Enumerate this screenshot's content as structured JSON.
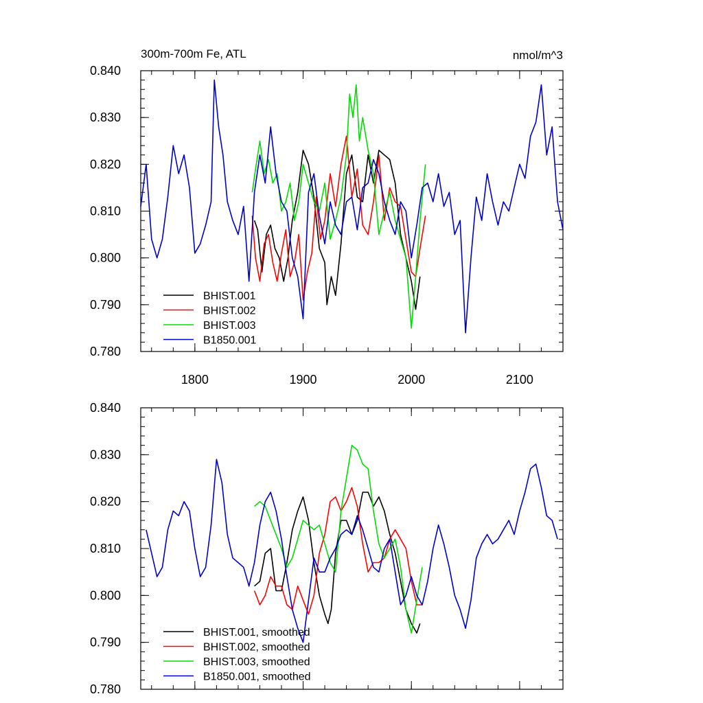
{
  "chart_data": [
    {
      "type": "line",
      "title": "300m-700m Fe, ATL",
      "units": "nmol/m^3",
      "xlabel": "",
      "ylabel": "",
      "xlim": [
        1750,
        2140
      ],
      "ylim": [
        0.78,
        0.84
      ],
      "xticks": [
        1800,
        1900,
        2000,
        2100
      ],
      "xtick_labels": [
        "1800",
        "1900",
        "2000",
        "2100"
      ],
      "yticks": [
        0.78,
        0.79,
        0.8,
        0.81,
        0.82,
        0.83,
        0.84
      ],
      "ytick_labels": [
        "0.780",
        "0.790",
        "0.800",
        "0.810",
        "0.820",
        "0.830",
        "0.840"
      ],
      "legend_position": "bottom-left",
      "series": [
        {
          "name": "BHIST.001",
          "color": "#000000",
          "x": [
            1855,
            1858,
            1862,
            1866,
            1870,
            1874,
            1878,
            1882,
            1886,
            1890,
            1895,
            1900,
            1905,
            1910,
            1915,
            1920,
            1922,
            1926,
            1930,
            1935,
            1940,
            1945,
            1950,
            1955,
            1960,
            1965,
            1970,
            1975,
            1980,
            1985,
            1990,
            1995,
            2000,
            2004,
            2008
          ],
          "y": [
            0.808,
            0.806,
            0.797,
            0.805,
            0.807,
            0.802,
            0.8,
            0.795,
            0.8,
            0.808,
            0.814,
            0.823,
            0.82,
            0.813,
            0.802,
            0.799,
            0.79,
            0.796,
            0.792,
            0.803,
            0.818,
            0.822,
            0.813,
            0.812,
            0.822,
            0.816,
            0.823,
            0.822,
            0.821,
            0.816,
            0.805,
            0.8,
            0.795,
            0.789,
            0.796
          ]
        },
        {
          "name": "BHIST.002",
          "color": "#ff0000",
          "x": [
            1853,
            1856,
            1860,
            1864,
            1868,
            1872,
            1876,
            1880,
            1884,
            1888,
            1892,
            1896,
            1900,
            1904,
            1908,
            1912,
            1916,
            1920,
            1925,
            1930,
            1935,
            1940,
            1945,
            1950,
            1955,
            1960,
            1965,
            1970,
            1975,
            1980,
            1985,
            1990,
            1995,
            2000,
            2004,
            2008,
            2013
          ],
          "y": [
            0.809,
            0.8,
            0.795,
            0.803,
            0.805,
            0.799,
            0.795,
            0.801,
            0.806,
            0.796,
            0.799,
            0.805,
            0.791,
            0.797,
            0.801,
            0.813,
            0.804,
            0.808,
            0.818,
            0.811,
            0.82,
            0.826,
            0.813,
            0.819,
            0.807,
            0.805,
            0.812,
            0.822,
            0.808,
            0.815,
            0.812,
            0.811,
            0.804,
            0.797,
            0.796,
            0.802,
            0.809
          ]
        },
        {
          "name": "BHIST.003",
          "color": "#00dd00",
          "x": [
            1853,
            1856,
            1860,
            1864,
            1868,
            1872,
            1876,
            1880,
            1884,
            1888,
            1892,
            1896,
            1900,
            1905,
            1910,
            1915,
            1920,
            1925,
            1930,
            1935,
            1940,
            1943,
            1946,
            1949,
            1952,
            1955,
            1960,
            1965,
            1970,
            1975,
            1980,
            1985,
            1990,
            1995,
            2000,
            2004,
            2008,
            2013
          ],
          "y": [
            0.814,
            0.819,
            0.825,
            0.818,
            0.821,
            0.816,
            0.818,
            0.81,
            0.812,
            0.816,
            0.808,
            0.812,
            0.82,
            0.816,
            0.812,
            0.81,
            0.816,
            0.804,
            0.808,
            0.813,
            0.822,
            0.835,
            0.83,
            0.837,
            0.825,
            0.83,
            0.823,
            0.818,
            0.805,
            0.81,
            0.814,
            0.808,
            0.804,
            0.8,
            0.785,
            0.796,
            0.808,
            0.82
          ]
        },
        {
          "name": "B1850.001",
          "color": "#0000cc",
          "x": [
            1750,
            1755,
            1760,
            1765,
            1770,
            1775,
            1780,
            1785,
            1790,
            1795,
            1800,
            1805,
            1810,
            1815,
            1818,
            1822,
            1826,
            1830,
            1835,
            1840,
            1845,
            1850,
            1855,
            1860,
            1865,
            1870,
            1875,
            1880,
            1885,
            1890,
            1895,
            1900,
            1905,
            1910,
            1915,
            1920,
            1925,
            1930,
            1935,
            1940,
            1945,
            1950,
            1955,
            1960,
            1965,
            1970,
            1975,
            1980,
            1985,
            1990,
            1995,
            2000,
            2005,
            2010,
            2015,
            2020,
            2025,
            2030,
            2035,
            2040,
            2045,
            2050,
            2055,
            2060,
            2065,
            2070,
            2075,
            2080,
            2085,
            2090,
            2095,
            2100,
            2105,
            2110,
            2115,
            2120,
            2125,
            2130,
            2135,
            2140
          ],
          "y": [
            0.811,
            0.82,
            0.804,
            0.8,
            0.804,
            0.813,
            0.824,
            0.818,
            0.822,
            0.815,
            0.801,
            0.803,
            0.807,
            0.812,
            0.838,
            0.828,
            0.822,
            0.812,
            0.808,
            0.805,
            0.811,
            0.795,
            0.814,
            0.822,
            0.816,
            0.828,
            0.818,
            0.812,
            0.81,
            0.8,
            0.796,
            0.787,
            0.814,
            0.818,
            0.809,
            0.803,
            0.812,
            0.807,
            0.805,
            0.812,
            0.813,
            0.806,
            0.815,
            0.816,
            0.821,
            0.818,
            0.812,
            0.808,
            0.805,
            0.812,
            0.81,
            0.8,
            0.807,
            0.815,
            0.816,
            0.812,
            0.818,
            0.811,
            0.814,
            0.805,
            0.808,
            0.784,
            0.8,
            0.813,
            0.808,
            0.818,
            0.812,
            0.807,
            0.812,
            0.81,
            0.815,
            0.82,
            0.817,
            0.826,
            0.829,
            0.837,
            0.822,
            0.828,
            0.812,
            0.806
          ]
        }
      ]
    },
    {
      "type": "line",
      "title": "",
      "xlabel": "",
      "ylabel": "",
      "xlim": [
        1750,
        2140
      ],
      "ylim": [
        0.78,
        0.84
      ],
      "xticks": [
        1800,
        1900,
        2000,
        2100
      ],
      "xtick_labels": [],
      "yticks": [
        0.78,
        0.79,
        0.8,
        0.81,
        0.82,
        0.83,
        0.84
      ],
      "ytick_labels": [
        "0.780",
        "0.790",
        "0.800",
        "0.810",
        "0.820",
        "0.830",
        "0.840"
      ],
      "legend_position": "bottom-left",
      "series": [
        {
          "name": "BHIST.001, smoothed",
          "color": "#000000",
          "x": [
            1855,
            1860,
            1865,
            1870,
            1875,
            1880,
            1885,
            1890,
            1895,
            1900,
            1905,
            1910,
            1915,
            1920,
            1923,
            1926,
            1930,
            1935,
            1940,
            1945,
            1950,
            1955,
            1960,
            1965,
            1970,
            1975,
            1980,
            1985,
            1990,
            1995,
            2000,
            2005,
            2008
          ],
          "y": [
            0.802,
            0.803,
            0.809,
            0.81,
            0.801,
            0.801,
            0.807,
            0.814,
            0.818,
            0.821,
            0.816,
            0.807,
            0.8,
            0.796,
            0.794,
            0.797,
            0.809,
            0.816,
            0.816,
            0.813,
            0.816,
            0.822,
            0.822,
            0.819,
            0.821,
            0.818,
            0.813,
            0.809,
            0.803,
            0.797,
            0.794,
            0.792,
            0.794
          ]
        },
        {
          "name": "BHIST.002, smoothed",
          "color": "#ff0000",
          "x": [
            1855,
            1860,
            1865,
            1870,
            1875,
            1880,
            1885,
            1890,
            1895,
            1900,
            1905,
            1910,
            1915,
            1920,
            1925,
            1930,
            1935,
            1940,
            1945,
            1950,
            1955,
            1960,
            1965,
            1970,
            1975,
            1980,
            1985,
            1990,
            1995,
            2000,
            2005,
            2010
          ],
          "y": [
            0.801,
            0.798,
            0.8,
            0.804,
            0.802,
            0.802,
            0.798,
            0.797,
            0.802,
            0.799,
            0.796,
            0.8,
            0.809,
            0.813,
            0.82,
            0.821,
            0.818,
            0.82,
            0.823,
            0.819,
            0.811,
            0.805,
            0.807,
            0.807,
            0.808,
            0.812,
            0.814,
            0.812,
            0.81,
            0.803,
            0.798,
            0.798
          ]
        },
        {
          "name": "BHIST.003, smoothed",
          "color": "#00dd00",
          "x": [
            1855,
            1860,
            1865,
            1870,
            1875,
            1880,
            1885,
            1890,
            1895,
            1900,
            1905,
            1910,
            1915,
            1920,
            1925,
            1930,
            1935,
            1940,
            1945,
            1950,
            1955,
            1960,
            1965,
            1970,
            1975,
            1980,
            1985,
            1990,
            1995,
            2000,
            2005,
            2010
          ],
          "y": [
            0.819,
            0.82,
            0.819,
            0.816,
            0.813,
            0.81,
            0.806,
            0.808,
            0.812,
            0.816,
            0.815,
            0.814,
            0.815,
            0.811,
            0.807,
            0.805,
            0.818,
            0.825,
            0.832,
            0.831,
            0.828,
            0.827,
            0.818,
            0.811,
            0.808,
            0.81,
            0.812,
            0.806,
            0.797,
            0.792,
            0.799,
            0.806
          ]
        },
        {
          "name": "B1850.001, smoothed",
          "color": "#0000cc",
          "x": [
            1755,
            1760,
            1765,
            1770,
            1775,
            1780,
            1785,
            1790,
            1795,
            1800,
            1805,
            1810,
            1815,
            1820,
            1825,
            1830,
            1835,
            1840,
            1845,
            1850,
            1855,
            1860,
            1865,
            1870,
            1875,
            1880,
            1885,
            1890,
            1895,
            1900,
            1905,
            1910,
            1915,
            1920,
            1925,
            1930,
            1935,
            1940,
            1945,
            1950,
            1955,
            1960,
            1965,
            1970,
            1975,
            1980,
            1985,
            1990,
            1995,
            2000,
            2005,
            2010,
            2015,
            2020,
            2025,
            2030,
            2035,
            2040,
            2045,
            2050,
            2055,
            2060,
            2065,
            2070,
            2075,
            2080,
            2085,
            2090,
            2095,
            2100,
            2105,
            2110,
            2115,
            2120,
            2125,
            2130,
            2135
          ],
          "y": [
            0.814,
            0.809,
            0.804,
            0.806,
            0.814,
            0.818,
            0.817,
            0.82,
            0.818,
            0.81,
            0.804,
            0.806,
            0.815,
            0.829,
            0.824,
            0.813,
            0.808,
            0.807,
            0.806,
            0.802,
            0.807,
            0.815,
            0.82,
            0.822,
            0.818,
            0.812,
            0.804,
            0.797,
            0.793,
            0.79,
            0.799,
            0.808,
            0.805,
            0.805,
            0.808,
            0.81,
            0.813,
            0.814,
            0.813,
            0.817,
            0.814,
            0.81,
            0.806,
            0.805,
            0.81,
            0.812,
            0.805,
            0.798,
            0.8,
            0.804,
            0.8,
            0.798,
            0.803,
            0.81,
            0.815,
            0.811,
            0.806,
            0.8,
            0.797,
            0.793,
            0.799,
            0.808,
            0.811,
            0.813,
            0.811,
            0.812,
            0.814,
            0.816,
            0.813,
            0.818,
            0.822,
            0.827,
            0.828,
            0.823,
            0.817,
            0.816,
            0.812
          ]
        }
      ]
    }
  ]
}
